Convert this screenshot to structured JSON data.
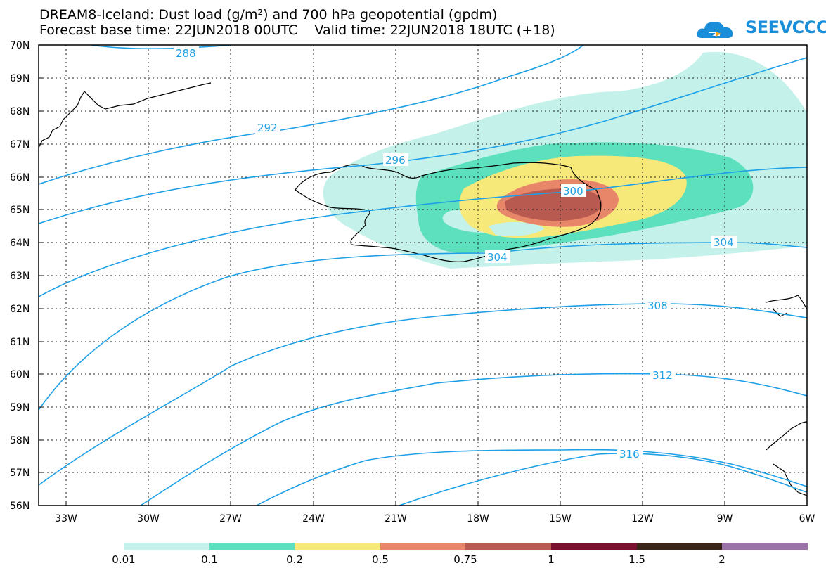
{
  "title": {
    "line1": "DREAM8-Iceland: Dust load (g/m²) and 700 hPa geopotential (gpdm)",
    "line2": "Forecast base time: 22JUN2018 00UTC    Valid time: 22JUN2018 18UTC (+18)"
  },
  "logo": {
    "text": "SEEVCCC",
    "color": "#1a8ed8"
  },
  "axes": {
    "lat_labels": [
      "70N",
      "69N",
      "68N",
      "67N",
      "66N",
      "65N",
      "64N",
      "63N",
      "62N",
      "61N",
      "60N",
      "59N",
      "58N",
      "57N",
      "56N"
    ],
    "lon_labels": [
      "33W",
      "30W",
      "27W",
      "24W",
      "21W",
      "18W",
      "15W",
      "12W",
      "9W",
      "6W"
    ]
  },
  "contour_labels": [
    "288",
    "292",
    "296",
    "300",
    "304",
    "304",
    "308",
    "312",
    "316"
  ],
  "legend": {
    "labels": [
      "0.01",
      "0.1",
      "0.2",
      "0.5",
      "0.75",
      "1",
      "1.5",
      "2"
    ],
    "colors": [
      "#c4f2ea",
      "#5de0bd",
      "#f7e87a",
      "#e8866a",
      "#b95a50",
      "#7a1030",
      "#3b2418",
      "#9a72a8"
    ]
  },
  "colors": {
    "contour": "#1ea0e6",
    "coast": "#000000"
  }
}
